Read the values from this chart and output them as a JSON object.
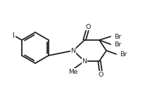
{
  "bg_color": "#ffffff",
  "line_color": "#222222",
  "text_color": "#222222",
  "line_width": 1.3,
  "font_size": 6.8,
  "fig_width": 2.13,
  "fig_height": 1.48,
  "dpi": 100,
  "xlim": [
    0,
    213
  ],
  "ylim": [
    0,
    148
  ]
}
